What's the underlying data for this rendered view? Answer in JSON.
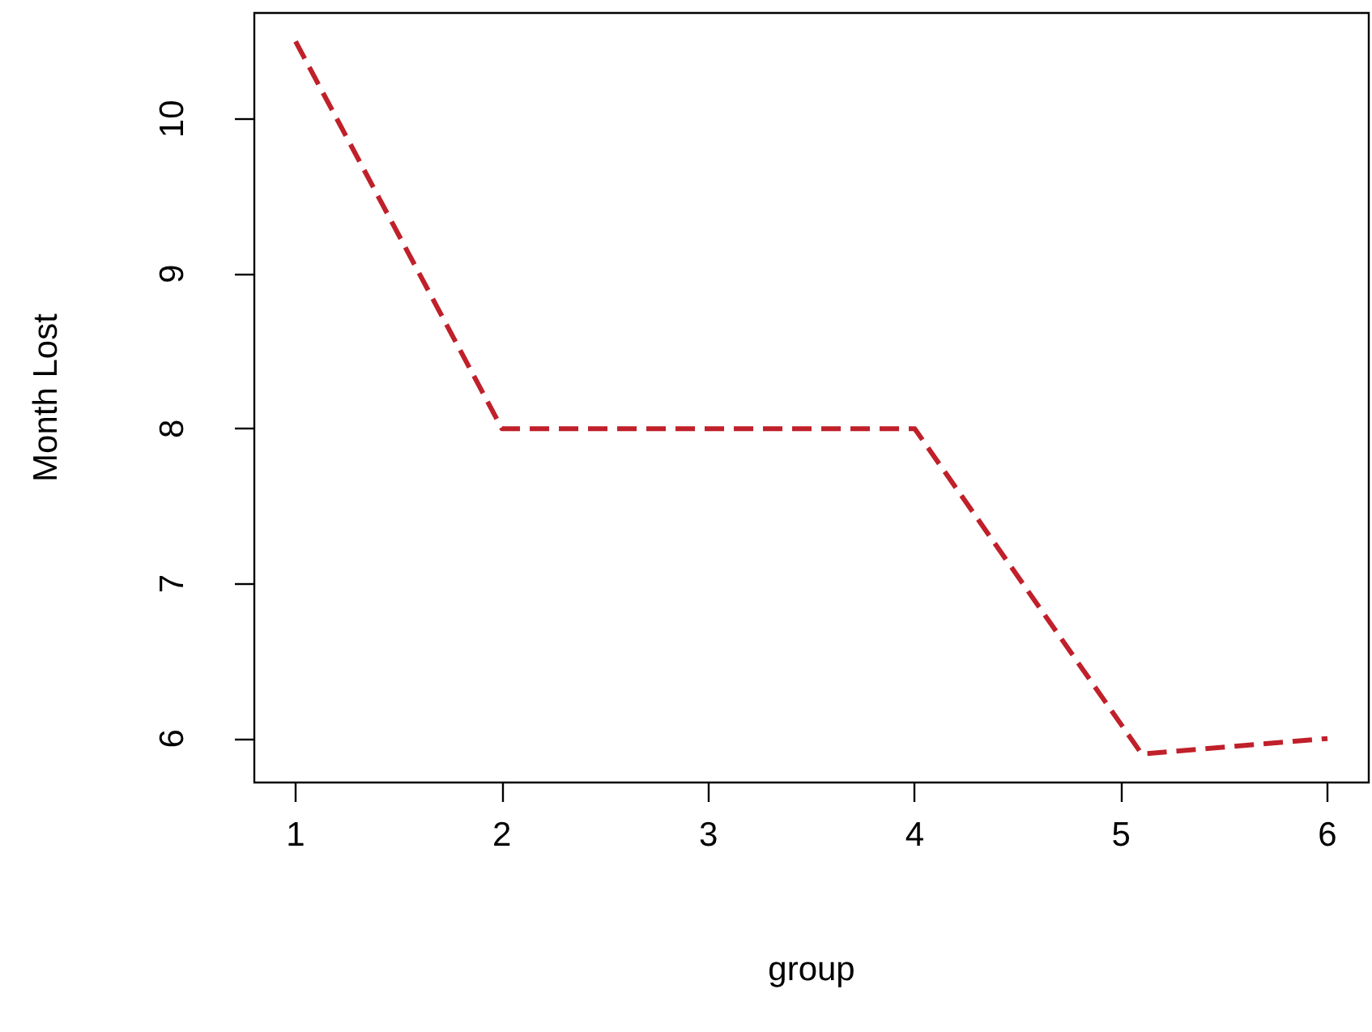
{
  "chart_data": {
    "type": "line",
    "xlabel": "group",
    "ylabel": "Month Lost",
    "x": [
      1,
      2,
      4,
      5.1,
      6
    ],
    "series": [
      {
        "color": "#c0202a",
        "values": [
          10.5,
          8,
          8,
          5.9,
          6
        ]
      }
    ],
    "xlim": [
      0.8,
      6.2
    ],
    "xticks": [
      1,
      2,
      3,
      4,
      5,
      6
    ],
    "ylim": [
      5.716,
      10.684
    ],
    "yticks": [
      6,
      7,
      8,
      9,
      10
    ],
    "grid": false,
    "marker": "none",
    "line_style": "dashed"
  }
}
